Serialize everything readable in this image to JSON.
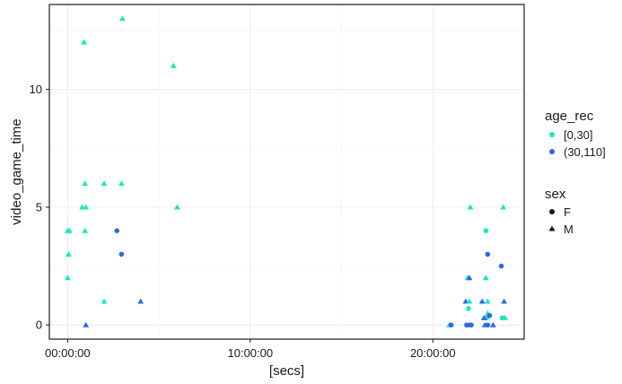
{
  "chart_data": {
    "type": "scatter",
    "xlabel": "[secs]",
    "ylabel": "video_game_time",
    "xlim": [
      -1.0,
      25.0
    ],
    "ylim": [
      -0.6,
      13.6
    ],
    "x_unit": "hours",
    "x_ticks": [
      {
        "value": 0,
        "label": "00:00:00"
      },
      {
        "value": 10,
        "label": "10:00:00"
      },
      {
        "value": 20,
        "label": "20:00:00"
      }
    ],
    "y_ticks": [
      {
        "value": 0,
        "label": "0"
      },
      {
        "value": 5,
        "label": "5"
      },
      {
        "value": 10,
        "label": "10"
      }
    ],
    "grid": true,
    "legend": {
      "position": "right",
      "color_title": "age_rec",
      "color_items": [
        {
          "label": "[0,30]",
          "color": "#17e8c0"
        },
        {
          "label": "(30,110]",
          "color": "#2f68e0"
        }
      ],
      "shape_title": "sex",
      "shape_items": [
        {
          "label": "F",
          "shape": "circle"
        },
        {
          "label": "M",
          "shape": "triangle"
        }
      ]
    },
    "points": [
      {
        "x": 0.0,
        "y": 4.0,
        "age": "[0,30]",
        "sex": "M"
      },
      {
        "x": 0.1,
        "y": 4.0,
        "age": "[0,30]",
        "sex": "M"
      },
      {
        "x": 0.05,
        "y": 3.0,
        "age": "[0,30]",
        "sex": "M"
      },
      {
        "x": 0.0,
        "y": 2.0,
        "age": "[0,30]",
        "sex": "M"
      },
      {
        "x": 0.9,
        "y": 12.0,
        "age": "[0,30]",
        "sex": "M"
      },
      {
        "x": 0.95,
        "y": 6.0,
        "age": "[0,30]",
        "sex": "M"
      },
      {
        "x": 0.8,
        "y": 5.0,
        "age": "[0,30]",
        "sex": "M"
      },
      {
        "x": 1.0,
        "y": 5.0,
        "age": "[0,30]",
        "sex": "M"
      },
      {
        "x": 0.95,
        "y": 4.0,
        "age": "[0,30]",
        "sex": "M"
      },
      {
        "x": 1.0,
        "y": 0.0,
        "age": "(30,110]",
        "sex": "M"
      },
      {
        "x": 2.0,
        "y": 6.0,
        "age": "[0,30]",
        "sex": "M"
      },
      {
        "x": 2.0,
        "y": 1.0,
        "age": "[0,30]",
        "sex": "M"
      },
      {
        "x": 2.7,
        "y": 4.0,
        "age": "(30,110]",
        "sex": "F"
      },
      {
        "x": 2.95,
        "y": 6.0,
        "age": "[0,30]",
        "sex": "M"
      },
      {
        "x": 3.0,
        "y": 13.0,
        "age": "[0,30]",
        "sex": "M"
      },
      {
        "x": 2.95,
        "y": 3.0,
        "age": "(30,110]",
        "sex": "F"
      },
      {
        "x": 4.0,
        "y": 1.0,
        "age": "(30,110]",
        "sex": "M"
      },
      {
        "x": 5.8,
        "y": 11.0,
        "age": "[0,30]",
        "sex": "M"
      },
      {
        "x": 6.0,
        "y": 5.0,
        "age": "[0,30]",
        "sex": "M"
      },
      {
        "x": 20.9,
        "y": 0.0,
        "age": "[0,30]",
        "sex": "M"
      },
      {
        "x": 21.0,
        "y": 0.0,
        "age": "(30,110]",
        "sex": "F"
      },
      {
        "x": 21.8,
        "y": 1.0,
        "age": "(30,110]",
        "sex": "M"
      },
      {
        "x": 21.9,
        "y": 2.0,
        "age": "[0,30]",
        "sex": "M"
      },
      {
        "x": 22.0,
        "y": 2.0,
        "age": "(30,110]",
        "sex": "M"
      },
      {
        "x": 22.05,
        "y": 5.0,
        "age": "[0,30]",
        "sex": "M"
      },
      {
        "x": 22.0,
        "y": 1.0,
        "age": "[0,30]",
        "sex": "M"
      },
      {
        "x": 21.95,
        "y": 0.7,
        "age": "[0,30]",
        "sex": "F"
      },
      {
        "x": 21.85,
        "y": 0.0,
        "age": "(30,110]",
        "sex": "F"
      },
      {
        "x": 22.0,
        "y": 0.0,
        "age": "(30,110]",
        "sex": "M"
      },
      {
        "x": 22.1,
        "y": 0.0,
        "age": "(30,110]",
        "sex": "F"
      },
      {
        "x": 22.9,
        "y": 4.0,
        "age": "[0,30]",
        "sex": "F"
      },
      {
        "x": 23.0,
        "y": 3.0,
        "age": "(30,110]",
        "sex": "F"
      },
      {
        "x": 22.9,
        "y": 2.0,
        "age": "[0,30]",
        "sex": "M"
      },
      {
        "x": 23.0,
        "y": 1.0,
        "age": "[0,30]",
        "sex": "M"
      },
      {
        "x": 22.7,
        "y": 1.0,
        "age": "(30,110]",
        "sex": "M"
      },
      {
        "x": 23.0,
        "y": 0.5,
        "age": "[0,30]",
        "sex": "M"
      },
      {
        "x": 22.95,
        "y": 0.3,
        "age": "[0,30]",
        "sex": "F"
      },
      {
        "x": 22.8,
        "y": 0.3,
        "age": "(30,110]",
        "sex": "M"
      },
      {
        "x": 23.1,
        "y": 0.4,
        "age": "(30,110]",
        "sex": "F"
      },
      {
        "x": 22.85,
        "y": 0.0,
        "age": "(30,110]",
        "sex": "M"
      },
      {
        "x": 23.0,
        "y": 0.0,
        "age": "(30,110]",
        "sex": "F"
      },
      {
        "x": 23.3,
        "y": 0.0,
        "age": "(30,110]",
        "sex": "M"
      },
      {
        "x": 23.75,
        "y": 2.5,
        "age": "(30,110]",
        "sex": "F"
      },
      {
        "x": 23.85,
        "y": 5.0,
        "age": "[0,30]",
        "sex": "M"
      },
      {
        "x": 23.9,
        "y": 1.0,
        "age": "(30,110]",
        "sex": "M"
      },
      {
        "x": 23.8,
        "y": 0.3,
        "age": "[0,30]",
        "sex": "F"
      },
      {
        "x": 23.95,
        "y": 0.3,
        "age": "[0,30]",
        "sex": "M"
      }
    ]
  }
}
